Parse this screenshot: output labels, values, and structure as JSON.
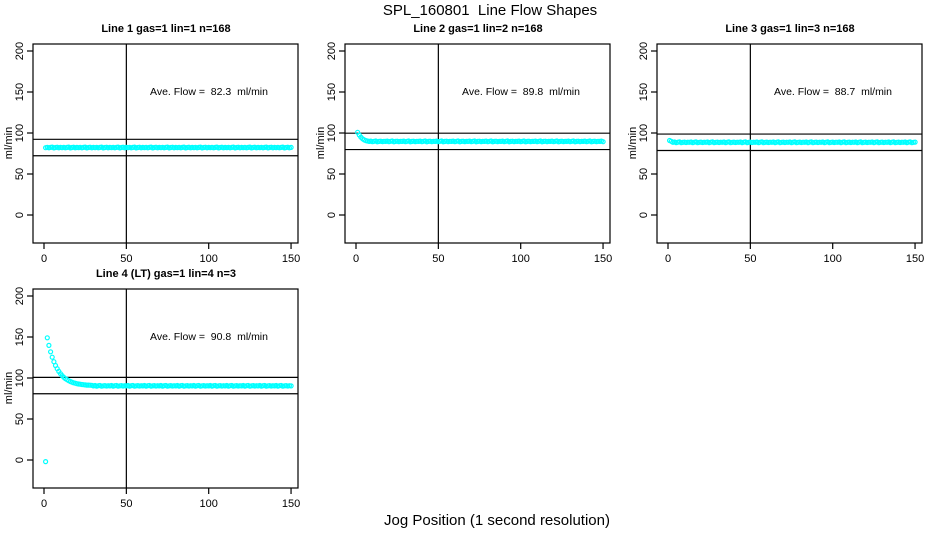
{
  "page": {
    "title": "SPL_160801  Line Flow Shapes",
    "xlabel": "Jog Position (1 second resolution)"
  },
  "colors": {
    "points": "#00FFFF",
    "axis": "#000000",
    "background": "#FFFFFF"
  },
  "chart_data": [
    {
      "type": "scatter",
      "title": "Line 1 gas=1 lin=1 n=168",
      "annotation": "Ave. Flow =  82.3  ml/min",
      "ave_flow": 82.3,
      "ylabel": "ml/min",
      "xticks": [
        0,
        50,
        100,
        150
      ],
      "yticks": [
        0,
        50,
        100,
        150,
        200
      ],
      "xlim": [
        -7,
        155
      ],
      "ylim": [
        -35,
        209
      ],
      "vline": 50,
      "hlines": [
        92.3,
        72.3
      ],
      "x_start": 1,
      "x_step": 1,
      "values": [
        82.1,
        82.6,
        81.9,
        82.4,
        82.8,
        81.8,
        82.3,
        82.7,
        82.0,
        82.5,
        82.1,
        82.6,
        81.9,
        82.4,
        82.8,
        81.8,
        82.3,
        82.7,
        82.0,
        82.5,
        82.1,
        82.6,
        81.9,
        82.4,
        82.8,
        81.8,
        82.3,
        82.7,
        82.0,
        82.5,
        82.1,
        82.6,
        81.9,
        82.4,
        82.8,
        81.8,
        82.3,
        82.7,
        82.0,
        82.5,
        82.1,
        82.6,
        81.9,
        82.4,
        82.8,
        81.8,
        82.3,
        82.7,
        82.0,
        82.5,
        82.1,
        82.6,
        81.9,
        82.4,
        82.8,
        81.8,
        82.3,
        82.7,
        82.0,
        82.5,
        82.1,
        82.6,
        81.9,
        82.4,
        82.8,
        81.8,
        82.3,
        82.7,
        82.0,
        82.5,
        82.1,
        82.6,
        81.9,
        82.4,
        82.8,
        81.8,
        82.3,
        82.7,
        82.0,
        82.5,
        82.1,
        82.6,
        81.9,
        82.4,
        82.8,
        81.8,
        82.3,
        82.7,
        82.0,
        82.5,
        82.1,
        82.6,
        81.9,
        82.4,
        82.8,
        81.8,
        82.3,
        82.7,
        82.0,
        82.5,
        82.1,
        82.6,
        81.9,
        82.4,
        82.8,
        81.8,
        82.3,
        82.7,
        82.0,
        82.5,
        82.1,
        82.6,
        81.9,
        82.4,
        82.8,
        81.8,
        82.3,
        82.7,
        82.0,
        82.5,
        82.1,
        82.6,
        81.9,
        82.4,
        82.8,
        81.8,
        82.3,
        82.7,
        82.0,
        82.5,
        82.1,
        82.6,
        81.9,
        82.4,
        82.8,
        81.8,
        82.3,
        82.7,
        82.0,
        82.5,
        82.1,
        82.6,
        81.9,
        82.4,
        82.8,
        81.8,
        82.3,
        82.7,
        82.0,
        82.5
      ]
    },
    {
      "type": "scatter",
      "title": "Line 2 gas=1 lin=2 n=168",
      "annotation": "Ave. Flow =  89.8  ml/min",
      "ave_flow": 89.8,
      "ylabel": "ml/min",
      "xticks": [
        0,
        50,
        100,
        150
      ],
      "yticks": [
        0,
        50,
        100,
        150,
        200
      ],
      "xlim": [
        -7,
        155
      ],
      "ylim": [
        -35,
        209
      ],
      "vline": 50,
      "hlines": [
        99.8,
        79.8
      ],
      "x_start": 1,
      "x_step": 1,
      "values": [
        100.9,
        97.6,
        94.9,
        92.9,
        91.6,
        90.7,
        90.2,
        89.7,
        90.1,
        89.4,
        89.9,
        90.2,
        89.3,
        89.8,
        90.0,
        89.5,
        89.9,
        89.7,
        90.1,
        89.4,
        89.9,
        90.2,
        89.3,
        89.8,
        90.0,
        89.5,
        89.9,
        89.7,
        90.1,
        89.4,
        89.9,
        90.2,
        89.3,
        89.8,
        90.0,
        89.5,
        89.9,
        89.7,
        90.1,
        89.4,
        89.9,
        90.2,
        89.3,
        89.8,
        90.0,
        89.5,
        89.9,
        89.7,
        90.1,
        89.4,
        89.9,
        90.2,
        89.3,
        89.8,
        90.0,
        89.5,
        89.9,
        89.7,
        90.1,
        89.4,
        89.9,
        90.2,
        89.3,
        89.8,
        90.0,
        89.5,
        89.9,
        89.7,
        90.1,
        89.4,
        89.9,
        90.2,
        89.3,
        89.8,
        90.0,
        89.5,
        89.9,
        89.7,
        90.1,
        89.4,
        89.9,
        90.2,
        89.3,
        89.8,
        90.0,
        89.5,
        89.9,
        89.7,
        90.1,
        89.4,
        89.9,
        90.2,
        89.3,
        89.8,
        90.0,
        89.5,
        89.9,
        89.7,
        90.1,
        89.4,
        89.9,
        90.2,
        89.3,
        89.8,
        90.0,
        89.5,
        89.9,
        89.7,
        90.1,
        89.4,
        89.9,
        90.2,
        89.3,
        89.8,
        90.0,
        89.5,
        89.9,
        89.7,
        90.1,
        89.4,
        89.9,
        90.2,
        89.3,
        89.8,
        90.0,
        89.5,
        89.9,
        89.7,
        90.1,
        89.4,
        89.9,
        90.2,
        89.3,
        89.8,
        90.0,
        89.5,
        89.9,
        89.7,
        90.1,
        89.4,
        89.9,
        90.2,
        89.3,
        89.8,
        90.0,
        89.5,
        89.9,
        89.7,
        90.1,
        89.4
      ]
    },
    {
      "type": "scatter",
      "title": "Line 3 gas=1 lin=3 n=168",
      "annotation": "Ave. Flow =  88.7  ml/min",
      "ave_flow": 88.7,
      "ylabel": "ml/min",
      "xticks": [
        0,
        50,
        100,
        150
      ],
      "yticks": [
        0,
        50,
        100,
        150,
        200
      ],
      "xlim": [
        -7,
        155
      ],
      "ylim": [
        -35,
        209
      ],
      "vline": 50,
      "hlines": [
        98.7,
        78.7
      ],
      "x_start": 1,
      "x_step": 1,
      "values": [
        90.8,
        89.9,
        88.6,
        89.0,
        88.3,
        88.8,
        89.1,
        88.2,
        88.7,
        88.9,
        88.4,
        88.8,
        88.6,
        89.0,
        88.3,
        88.8,
        89.1,
        88.2,
        88.7,
        88.9,
        88.4,
        88.8,
        88.6,
        89.0,
        88.3,
        88.8,
        89.1,
        88.2,
        88.7,
        88.9,
        88.4,
        88.8,
        88.6,
        89.0,
        88.3,
        88.8,
        89.1,
        88.2,
        88.7,
        88.9,
        88.4,
        88.8,
        88.6,
        89.0,
        88.3,
        88.8,
        89.1,
        88.2,
        88.7,
        88.9,
        88.4,
        88.8,
        88.6,
        89.0,
        88.3,
        88.8,
        89.1,
        88.2,
        88.7,
        88.9,
        88.4,
        88.8,
        88.6,
        89.0,
        88.3,
        88.8,
        89.1,
        88.2,
        88.7,
        88.9,
        88.4,
        88.8,
        88.6,
        89.0,
        88.3,
        88.8,
        89.1,
        88.2,
        88.7,
        88.9,
        88.4,
        88.8,
        88.6,
        89.0,
        88.3,
        88.8,
        89.1,
        88.2,
        88.7,
        88.9,
        88.4,
        88.8,
        88.6,
        89.0,
        88.3,
        88.8,
        89.1,
        88.2,
        88.7,
        88.9,
        88.4,
        88.8,
        88.6,
        89.0,
        88.3,
        88.8,
        89.1,
        88.2,
        88.7,
        88.9,
        88.4,
        88.8,
        88.6,
        89.0,
        88.3,
        88.8,
        89.1,
        88.2,
        88.7,
        88.9,
        88.4,
        88.8,
        88.6,
        89.0,
        88.3,
        88.8,
        89.1,
        88.2,
        88.7,
        88.9,
        88.4,
        88.8,
        88.6,
        89.0,
        88.3,
        88.8,
        89.1,
        88.2,
        88.7,
        88.9,
        88.4,
        88.8,
        88.6,
        89.0,
        88.3,
        88.8,
        89.1,
        88.2,
        88.7,
        88.9
      ]
    },
    {
      "type": "scatter",
      "title": "Line 4 (LT) gas=1 lin=4 n=3",
      "annotation": "Ave. Flow =  90.8  ml/min",
      "ave_flow": 90.8,
      "ylabel": "ml/min",
      "xticks": [
        0,
        50,
        100,
        150
      ],
      "yticks": [
        0,
        50,
        100,
        150,
        200
      ],
      "xlim": [
        -7,
        155
      ],
      "ylim": [
        -35,
        209
      ],
      "vline": 50,
      "hlines": [
        100.8,
        80.8
      ],
      "x_start": 1,
      "x_step": 1,
      "values": [
        -2.0,
        149.0,
        139.8,
        131.9,
        125.4,
        119.9,
        115.2,
        111.3,
        108.0,
        105.2,
        102.9,
        100.9,
        99.3,
        97.9,
        96.7,
        95.7,
        94.9,
        94.2,
        93.6,
        93.1,
        92.7,
        92.4,
        92.1,
        91.8,
        91.6,
        91.4,
        91.3,
        91.2,
        91.1,
        90.4,
        90.8,
        90.1,
        90.6,
        90.9,
        90.0,
        90.5,
        90.7,
        90.2,
        90.6,
        90.4,
        90.8,
        90.1,
        90.6,
        90.9,
        90.0,
        90.5,
        90.7,
        90.2,
        90.6,
        90.4,
        90.8,
        90.1,
        90.6,
        90.9,
        90.0,
        90.5,
        90.7,
        90.2,
        90.6,
        90.4,
        90.8,
        90.1,
        90.6,
        90.9,
        90.0,
        90.5,
        90.7,
        90.2,
        90.6,
        90.4,
        90.8,
        90.1,
        90.6,
        90.9,
        90.0,
        90.5,
        90.7,
        90.2,
        90.6,
        90.4,
        90.8,
        90.1,
        90.6,
        90.9,
        90.0,
        90.5,
        90.7,
        90.2,
        90.6,
        90.4,
        90.8,
        90.1,
        90.6,
        90.9,
        90.0,
        90.5,
        90.7,
        90.2,
        90.6,
        90.4,
        90.8,
        90.1,
        90.6,
        90.9,
        90.0,
        90.5,
        90.7,
        90.2,
        90.6,
        90.4,
        90.8,
        90.1,
        90.6,
        90.9,
        90.0,
        90.5,
        90.7,
        90.2,
        90.6,
        90.4,
        90.8,
        90.1,
        90.6,
        90.9,
        90.0,
        90.5,
        90.7,
        90.2,
        90.6,
        90.4,
        90.8,
        90.1,
        90.6,
        90.9,
        90.0,
        90.5,
        90.7,
        90.2,
        90.6,
        90.4,
        90.8,
        90.1,
        90.6,
        90.9,
        90.0,
        90.5,
        90.7,
        90.2,
        90.6,
        90.4
      ]
    }
  ]
}
